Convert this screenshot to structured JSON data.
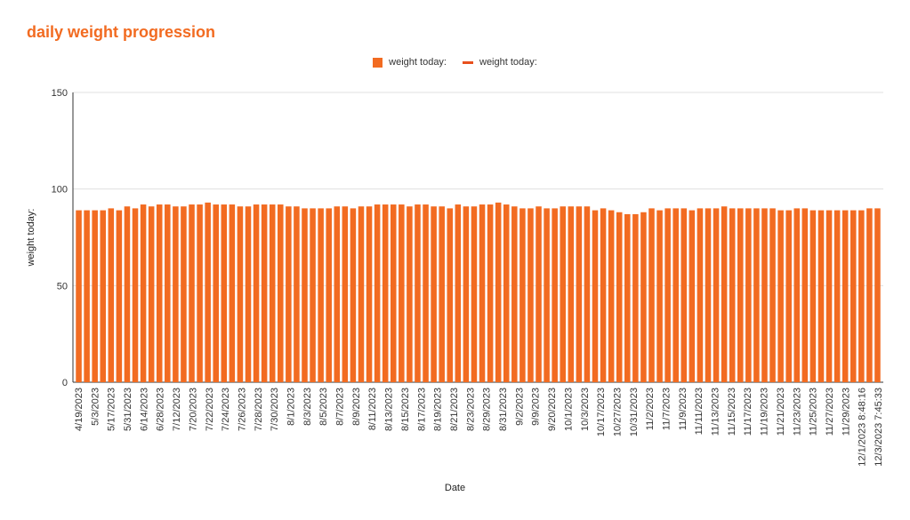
{
  "title": "daily weight progression",
  "legend": [
    {
      "label": "weight today:",
      "kind": "bar",
      "color": "#f26b21"
    },
    {
      "label": "weight today:",
      "kind": "line",
      "color": "#e8501e"
    }
  ],
  "chart_data": {
    "type": "bar",
    "xlabel": "Date",
    "ylabel": "weight today:",
    "ylim": [
      0,
      150
    ],
    "yticks": [
      0,
      50,
      100,
      150
    ],
    "grid": true,
    "legend_position": "top-center",
    "bar_color": "#f26b21",
    "tick_labels": [
      "4/19/2023",
      "5/3/2023",
      "5/17/2023",
      "5/31/2023",
      "6/14/2023",
      "6/28/2023",
      "7/12/2023",
      "7/20/2023",
      "7/22/2023",
      "7/24/2023",
      "7/26/2023",
      "7/28/2023",
      "7/30/2023",
      "8/1/2023",
      "8/3/2023",
      "8/5/2023",
      "8/7/2023",
      "8/9/2023",
      "8/11/2023",
      "8/13/2023",
      "8/15/2023",
      "8/17/2023",
      "8/19/2023",
      "8/21/2023",
      "8/23/2023",
      "8/29/2023",
      "8/31/2023",
      "9/2/2023",
      "9/9/2023",
      "9/20/2023",
      "10/1/2023",
      "10/3/2023",
      "10/17/2023",
      "10/27/2023",
      "10/31/2023",
      "11/2/2023",
      "11/7/2023",
      "11/9/2023",
      "11/11/2023",
      "11/13/2023",
      "11/15/2023",
      "11/17/2023",
      "11/19/2023",
      "11/21/2023",
      "11/23/2023",
      "11/25/2023",
      "11/27/2023",
      "11/29/2023",
      "12/1/2023 8:48:16",
      "12/3/2023 7:45:33"
    ],
    "values": [
      89,
      89,
      89,
      89,
      90,
      89,
      91,
      90,
      92,
      91,
      92,
      92,
      91,
      91,
      92,
      92,
      93,
      92,
      92,
      92,
      91,
      91,
      92,
      92,
      92,
      92,
      91,
      91,
      90,
      90,
      90,
      90,
      91,
      91,
      90,
      91,
      91,
      92,
      92,
      92,
      92,
      91,
      92,
      92,
      91,
      91,
      90,
      92,
      91,
      91,
      92,
      92,
      93,
      92,
      91,
      90,
      90,
      91,
      90,
      90,
      91,
      91,
      91,
      91,
      89,
      90,
      89,
      88,
      87,
      87,
      88,
      90,
      89,
      90,
      90,
      90,
      89,
      90,
      90,
      90,
      91,
      90,
      90,
      90,
      90,
      90,
      90,
      89,
      89,
      90,
      90,
      89,
      89,
      89,
      89,
      89,
      89,
      89,
      90,
      90
    ]
  }
}
